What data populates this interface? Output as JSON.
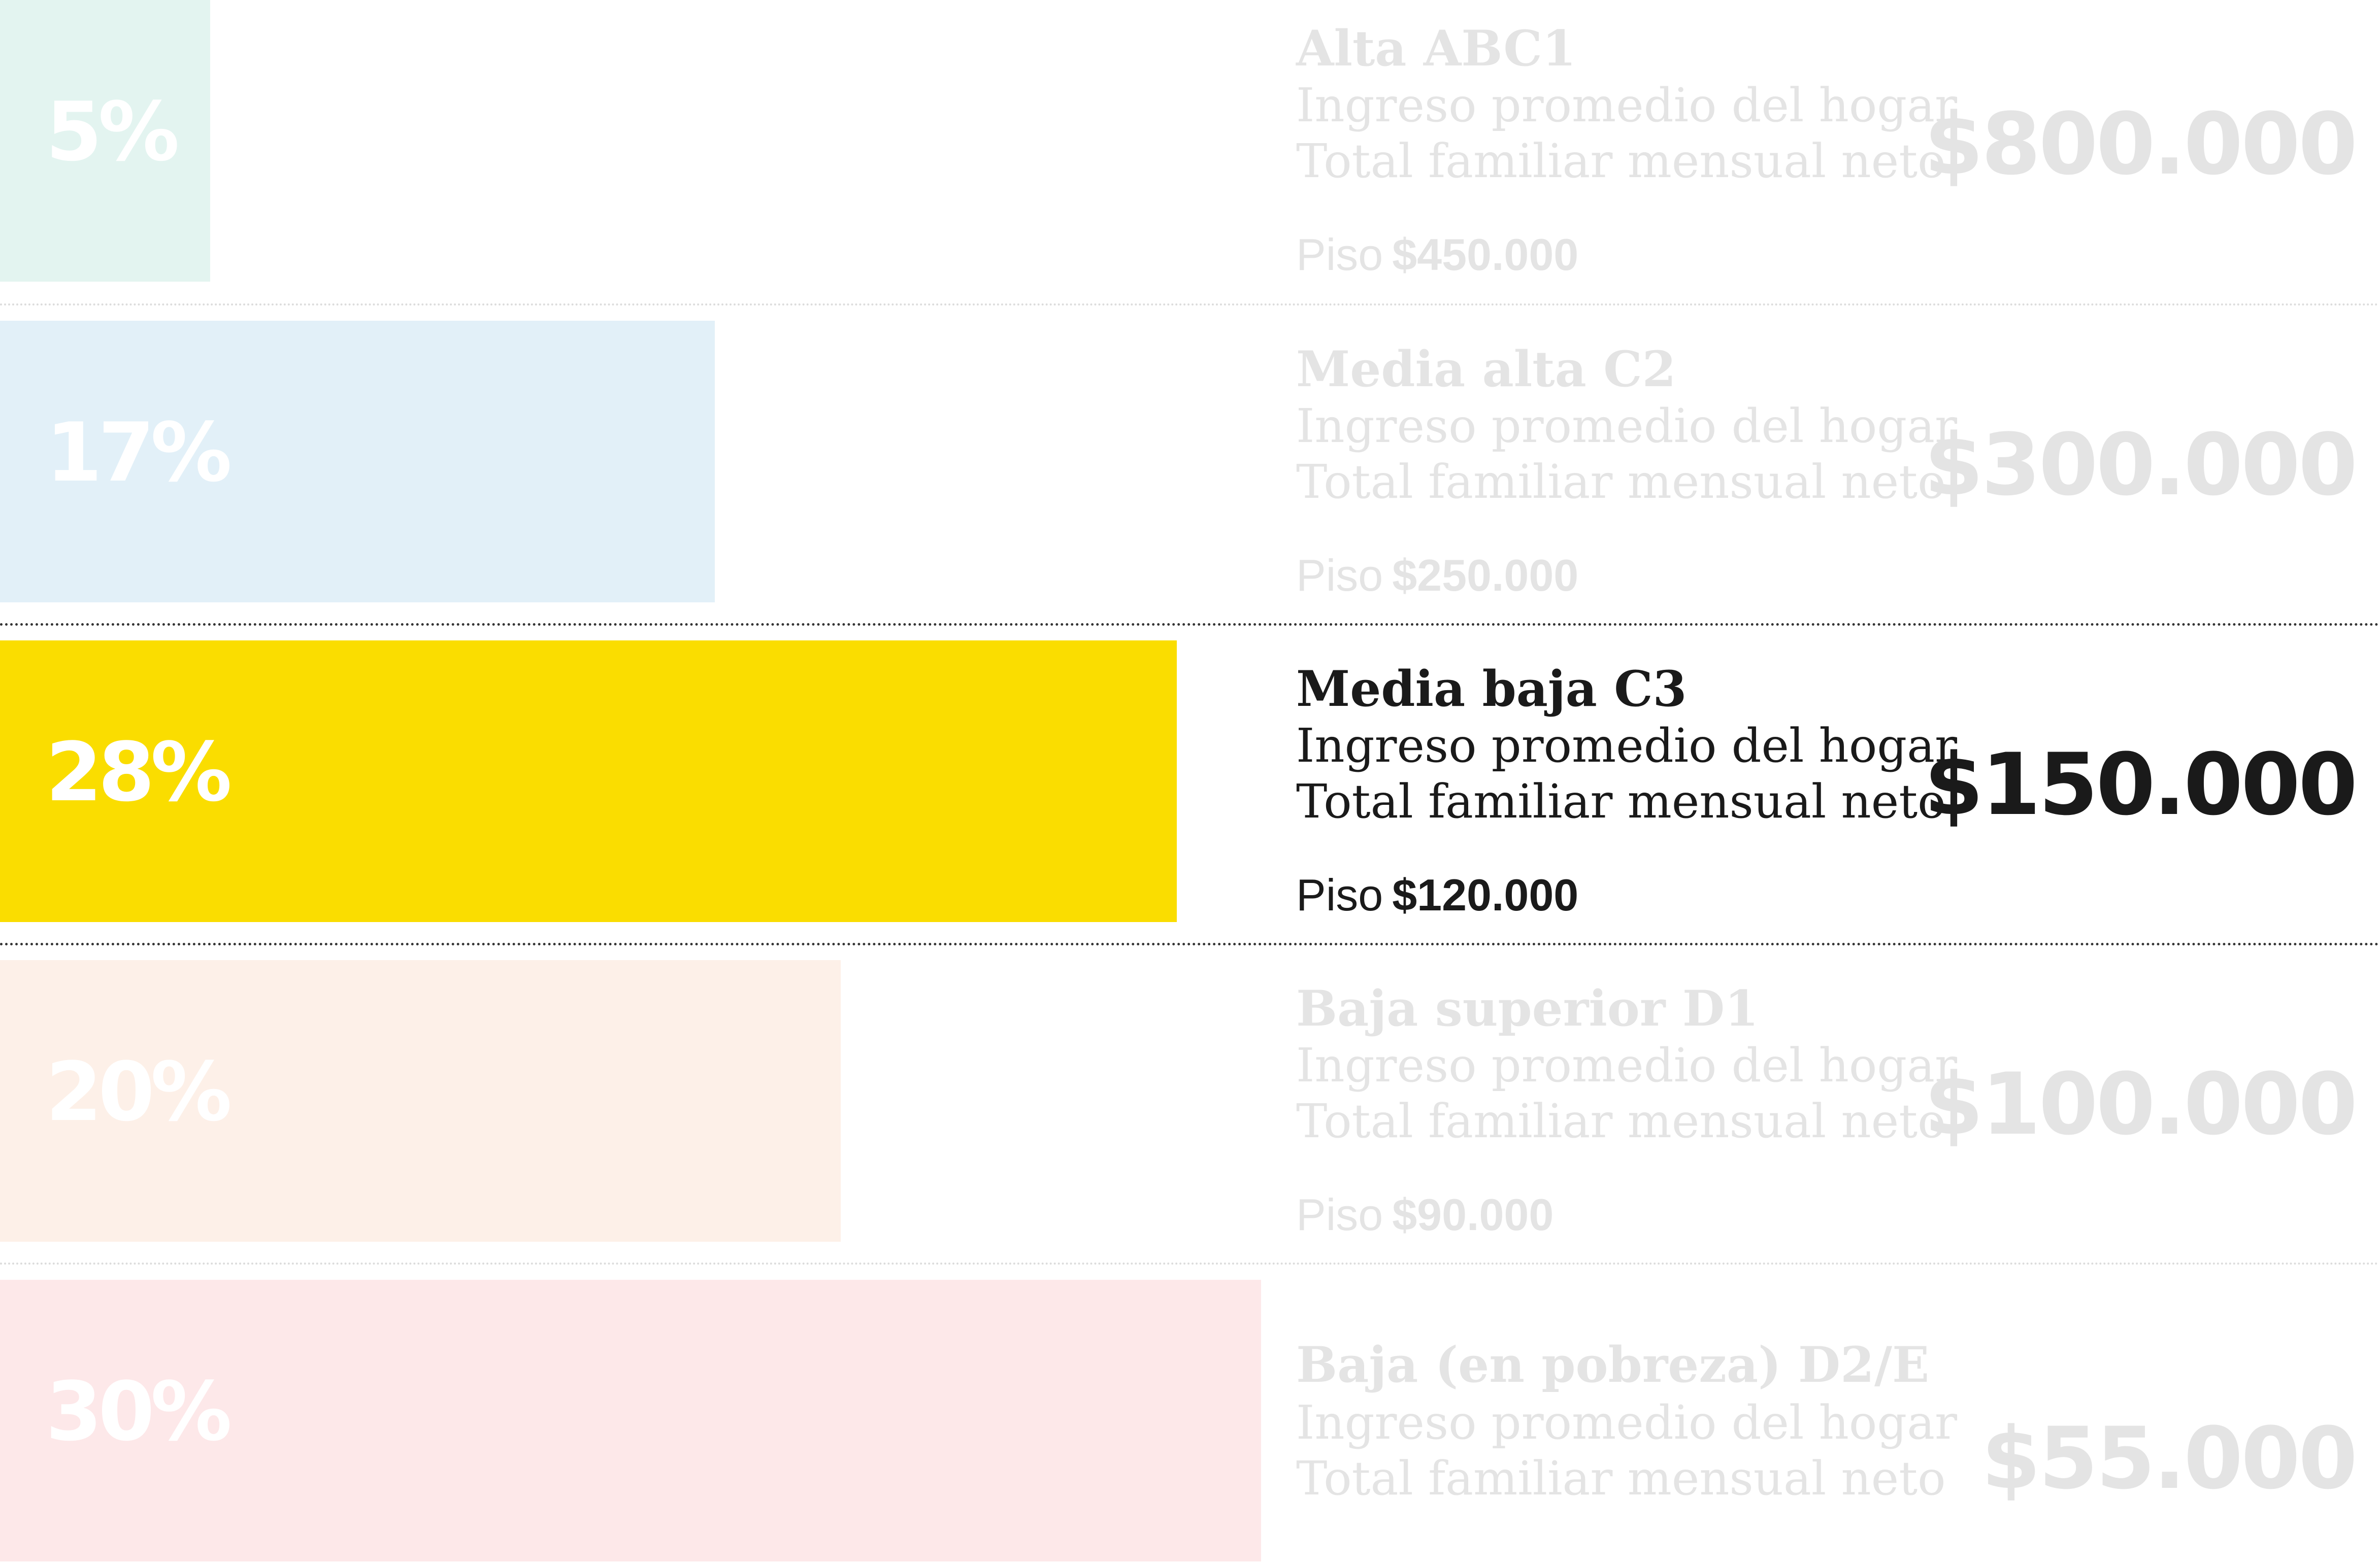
{
  "chart_data": {
    "type": "bar",
    "orientation": "horizontal",
    "highlighted_category": "Media baja C3",
    "income_label_line1": "Ingreso promedio del hogar",
    "income_label_line2": "Total familiar mensual neto",
    "floor_label": "Piso",
    "rows": [
      {
        "category": "Alta ABC1",
        "percent_label": "5%",
        "value": 5,
        "amount": "$800.000",
        "floor": "$450.000",
        "bar_color": "#e3f4f0",
        "text_color": "#e4e4e4",
        "highlighted": false
      },
      {
        "category": "Media alta C2",
        "percent_label": "17%",
        "value": 17,
        "amount": "$300.000",
        "floor": "$250.000",
        "bar_color": "#e2f0f8",
        "text_color": "#e4e4e4",
        "highlighted": false
      },
      {
        "category": "Media baja C3",
        "percent_label": "28%",
        "value": 28,
        "amount": "$150.000",
        "floor": "$120.000",
        "bar_color": "#fadd00",
        "text_color": "#1a1a1a",
        "highlighted": true
      },
      {
        "category": "Baja superior D1",
        "percent_label": "20%",
        "value": 20,
        "amount": "$100.000",
        "floor": "$90.000",
        "bar_color": "#fdf0e8",
        "text_color": "#e4e4e4",
        "highlighted": false
      },
      {
        "category": "Baja (en pobreza) D2/E",
        "percent_label": "30%",
        "value": 30,
        "amount": "$55.000",
        "floor": null,
        "bar_color": "#fde8e9",
        "text_color": "#e4e4e4",
        "highlighted": false
      }
    ]
  }
}
